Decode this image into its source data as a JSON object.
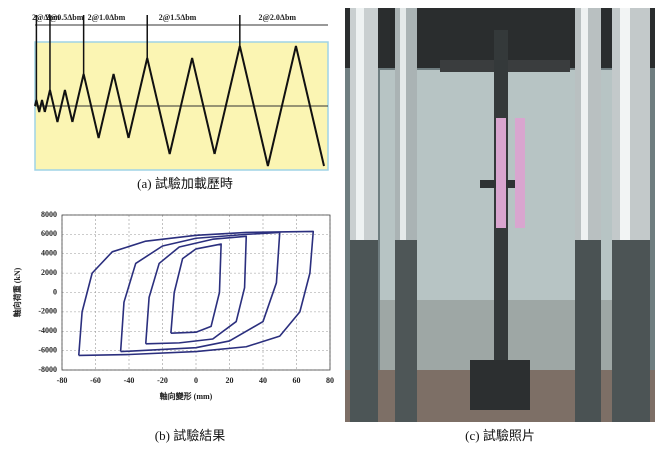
{
  "chart_data": [
    {
      "type": "protocol",
      "caption": "(a) 試驗加載歷時",
      "ylim": [
        -1.6,
        1.6
      ],
      "color": "#111111",
      "fill": "#fbf5b3",
      "series": [
        {
          "name": "2@Δbm",
          "values": [
            0.15,
            -0.15,
            0.15,
            -0.15
          ]
        },
        {
          "name": "2@0.5Δbm",
          "values": [
            0.4,
            -0.4,
            0.4,
            -0.4
          ]
        },
        {
          "name": "2@1.0Δbm",
          "values": [
            0.8,
            -0.8,
            0.8,
            -0.8
          ]
        },
        {
          "name": "2@1.5Δbm",
          "values": [
            1.2,
            -1.2,
            1.2,
            -1.2
          ]
        },
        {
          "name": "2@2.0Δbm",
          "values": [
            1.5,
            -1.5,
            1.5,
            -1.5
          ]
        }
      ]
    },
    {
      "type": "hysteresis",
      "caption": "(b) 試驗結果",
      "x_label": "軸向變形 (mm)",
      "y_label": "軸向荷重 (kN)",
      "xlim": [
        -80,
        80
      ],
      "xticks": [
        -80,
        -60,
        -40,
        -20,
        0,
        20,
        40,
        60,
        80
      ],
      "ylim": [
        -8000,
        8000
      ],
      "yticks": [
        -8000,
        -6000,
        -4000,
        -2000,
        0,
        2000,
        4000,
        6000,
        8000
      ],
      "grid": true,
      "color": "#2b2f7e",
      "series": [
        {
          "x": [
            -70,
            -68,
            -62,
            -50,
            -30,
            0,
            30,
            70,
            68,
            62,
            50,
            30,
            0,
            -40,
            -70
          ],
          "values": [
            -6500,
            -2000,
            2000,
            4200,
            5300,
            5900,
            6200,
            6300,
            2000,
            -2000,
            -4500,
            -5600,
            -6100,
            -6400,
            -6500
          ]
        },
        {
          "x": [
            -45,
            -43,
            -36,
            -20,
            0,
            30,
            50,
            48,
            40,
            20,
            0,
            -45
          ],
          "values": [
            -6100,
            -1000,
            3000,
            4800,
            5600,
            6000,
            6200,
            1000,
            -3000,
            -5000,
            -5700,
            -6100
          ]
        },
        {
          "x": [
            -30,
            -28,
            -22,
            -10,
            10,
            30,
            29,
            24,
            10,
            -10,
            -30
          ],
          "values": [
            -5300,
            -500,
            3000,
            4700,
            5500,
            5800,
            500,
            -3000,
            -4800,
            -5200,
            -5300
          ]
        },
        {
          "x": [
            -15,
            -13,
            -8,
            0,
            15,
            14,
            9,
            0,
            -15
          ],
          "values": [
            -4200,
            0,
            3500,
            4500,
            5000,
            0,
            -3500,
            -4100,
            -4200
          ]
        }
      ]
    }
  ],
  "photo": {
    "caption": "(c) 試驗照片"
  }
}
